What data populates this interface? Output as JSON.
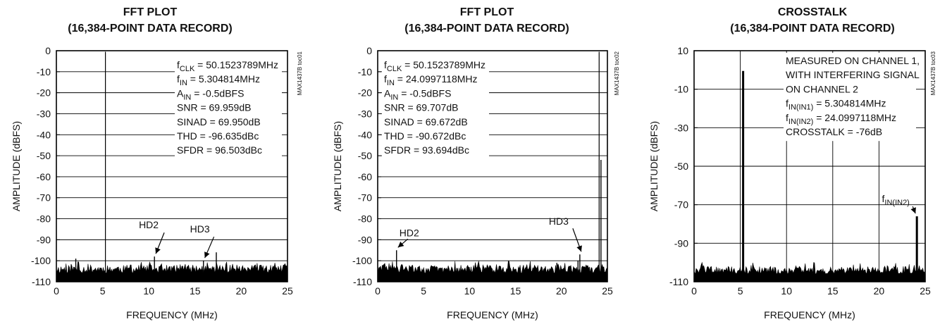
{
  "chart_data": [
    {
      "type": "line",
      "title": "FFT PLOT",
      "subtitle": "(16,384-POINT DATA RECORD)",
      "xlabel": "FREQUENCY (MHz)",
      "ylabel": "AMPLITUDE (dBFS)",
      "xlim": [
        0,
        25
      ],
      "ylim": [
        -110,
        0
      ],
      "x_ticks": [
        0,
        5,
        10,
        15,
        20,
        25
      ],
      "y_ticks": [
        0,
        -10,
        -20,
        -30,
        -40,
        -50,
        -60,
        -70,
        -80,
        -90,
        -100,
        -110
      ],
      "grid": "horizontal",
      "side_label": "MAX1437B toc01",
      "annotation_lines": [
        {
          "pre": "f",
          "sub": "CLK",
          "post": " = 50.1523789MHz"
        },
        {
          "pre": "f",
          "sub": "IN",
          "post": " = 5.304814MHz"
        },
        {
          "pre": "A",
          "sub": "IN",
          "post": " = -0.5dBFS"
        },
        {
          "pre": "SNR = 69.959dB",
          "sub": "",
          "post": ""
        },
        {
          "pre": "SINAD = 69.950dB",
          "sub": "",
          "post": ""
        },
        {
          "pre": "THD = -96.635dBc",
          "sub": "",
          "post": ""
        },
        {
          "pre": "SFDR = 96.503dBc",
          "sub": "",
          "post": ""
        }
      ],
      "markers": [
        {
          "label": "HD2",
          "x": 10.6,
          "y": -98
        },
        {
          "label": "HD3",
          "x": 15.9,
          "y": -100
        }
      ],
      "series": [
        {
          "peaks": [
            {
              "x": 5.305,
              "y": -0.5
            },
            {
              "x": 10.61,
              "y": -98
            },
            {
              "x": 15.91,
              "y": -100
            },
            {
              "x": 17.3,
              "y": -96
            },
            {
              "x": 2.1,
              "y": -99
            }
          ]
        }
      ],
      "noise_floor": [
        -110,
        -102
      ]
    },
    {
      "type": "line",
      "title": "FFT PLOT",
      "subtitle": "(16,384-POINT DATA RECORD)",
      "xlabel": "FREQUENCY (MHz)",
      "ylabel": "AMPLITUDE (dBFS)",
      "xlim": [
        0,
        25
      ],
      "ylim": [
        -110,
        0
      ],
      "x_ticks": [
        0,
        5,
        10,
        15,
        20,
        25
      ],
      "y_ticks": [
        0,
        -10,
        -20,
        -30,
        -40,
        -50,
        -60,
        -70,
        -80,
        -90,
        -100,
        -110
      ],
      "grid": "horizontal",
      "side_label": "MAX1437B toc02",
      "annotation_lines": [
        {
          "pre": "f",
          "sub": "CLK",
          "post": " = 50.1523789MHz"
        },
        {
          "pre": "f",
          "sub": "IN",
          "post": " = 24.0997118MHz"
        },
        {
          "pre": "A",
          "sub": "IN",
          "post": " = -0.5dBFS"
        },
        {
          "pre": "SNR = 69.707dB",
          "sub": "",
          "post": ""
        },
        {
          "pre": "SINAD = 69.672dB",
          "sub": "",
          "post": ""
        },
        {
          "pre": "THD = -90.672dBc",
          "sub": "",
          "post": ""
        },
        {
          "pre": "SFDR = 93.694dBc",
          "sub": "",
          "post": ""
        }
      ],
      "markers": [
        {
          "label": "HD2",
          "x": 2.05,
          "y": -95
        },
        {
          "label": "HD3",
          "x": 22.0,
          "y": -97
        }
      ],
      "series": [
        {
          "peaks": [
            {
              "x": 24.1,
              "y": -0.5
            },
            {
              "x": 24.3,
              "y": -52
            },
            {
              "x": 2.05,
              "y": -95
            },
            {
              "x": 22.0,
              "y": -97
            },
            {
              "x": 21.8,
              "y": -100
            },
            {
              "x": 19.5,
              "y": -101
            }
          ]
        }
      ],
      "noise_floor": [
        -110,
        -102
      ]
    },
    {
      "type": "line",
      "title": "CROSSTALK",
      "subtitle": "(16,384-POINT DATA RECORD)",
      "xlabel": "FREQUENCY (MHz)",
      "ylabel": "AMPLITUDE (dBFS)",
      "xlim": [
        0,
        25
      ],
      "ylim": [
        -110,
        10
      ],
      "x_ticks": [
        0,
        5,
        10,
        15,
        20,
        25
      ],
      "y_ticks": [
        10,
        -10,
        -30,
        -50,
        -70,
        -90,
        -110
      ],
      "grid": "both",
      "side_label": "MAX1437B toc03",
      "annotation_lines": [
        {
          "pre": "MEASURED ON CHANNEL 1,",
          "sub": "",
          "post": ""
        },
        {
          "pre": "WITH INTERFERING SIGNAL",
          "sub": "",
          "post": ""
        },
        {
          "pre": "ON CHANNEL 2",
          "sub": "",
          "post": ""
        },
        {
          "pre": "f",
          "sub": "IN(IN1)",
          "post": " = 5.304814MHz"
        },
        {
          "pre": "f",
          "sub": "IN(IN2)",
          "post": " = 24.0997118MHz"
        },
        {
          "pre": "CROSSTALK = -76dB",
          "sub": "",
          "post": ""
        }
      ],
      "markers": [
        {
          "label": "f",
          "label_sub": "IN(IN2)",
          "x": 24.1,
          "y": -76
        }
      ],
      "series": [
        {
          "peaks": [
            {
              "x": 5.305,
              "y": -0.5
            },
            {
              "x": 24.1,
              "y": -76
            }
          ]
        }
      ],
      "noise_floor": [
        -110,
        -102
      ]
    }
  ]
}
